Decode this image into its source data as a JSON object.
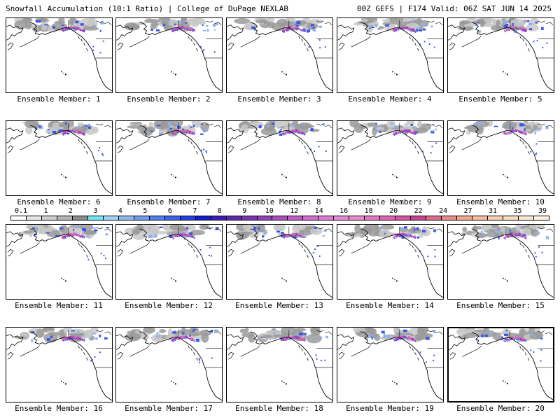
{
  "header": {
    "left": "Snowfall Accumulation (10:1 Ratio) | College of DuPage NEXLAB",
    "right": "00Z GEFS | F174 Valid: 06Z SAT JUN 14 2025"
  },
  "colorbar": {
    "labels": [
      "0.1",
      "1",
      "2",
      "3",
      "4",
      "5",
      "6",
      "7",
      "8",
      "9",
      "10",
      "12",
      "14",
      "16",
      "18",
      "20",
      "22",
      "24",
      "27",
      "31",
      "35",
      "39"
    ],
    "colors": [
      "#ffffff",
      "#e6e6e6",
      "#cfcfcf",
      "#b4b4b4",
      "#8c8c8c",
      "#6fe6f0",
      "#9fd4f5",
      "#8fb8f0",
      "#6f9cf0",
      "#5080ec",
      "#3b63e6",
      "#2040e0",
      "#1020c8",
      "#3c1cb0",
      "#5d2aa8",
      "#7a34b0",
      "#9440b8",
      "#ad4cc0",
      "#c45ac8",
      "#d46cd2",
      "#e07cd6",
      "#e88ad6",
      "#ec8ccc",
      "#e878c0",
      "#e064b0",
      "#d454a0",
      "#c84490",
      "#e06a8c",
      "#ee8c8c",
      "#f4a890",
      "#f6bc9c",
      "#f8cfb0",
      "#fadcc0",
      "#fce8d2",
      "#fef2e4"
    ]
  },
  "panel_label_prefix": "Ensemble Member: ",
  "selected_member": 20,
  "members": [
    {
      "number": "1"
    },
    {
      "number": "2"
    },
    {
      "number": "3"
    },
    {
      "number": "4"
    },
    {
      "number": "5"
    },
    {
      "number": "6"
    },
    {
      "number": "7"
    },
    {
      "number": "8"
    },
    {
      "number": "9"
    },
    {
      "number": "10"
    },
    {
      "number": "11"
    },
    {
      "number": "12"
    },
    {
      "number": "13"
    },
    {
      "number": "14"
    },
    {
      "number": "15"
    },
    {
      "number": "16"
    },
    {
      "number": "17"
    },
    {
      "number": "18"
    },
    {
      "number": "19"
    },
    {
      "number": "20"
    }
  ],
  "map_colors": {
    "coast": "#000000",
    "light_snow": "#c8c8c8",
    "medium_snow": "#9a9a9a",
    "blue_snow": "#3a55e8",
    "light_blue_snow": "#8fb0f0",
    "heavy_snow": "#b040c0",
    "pink_snow": "#e060b0"
  }
}
